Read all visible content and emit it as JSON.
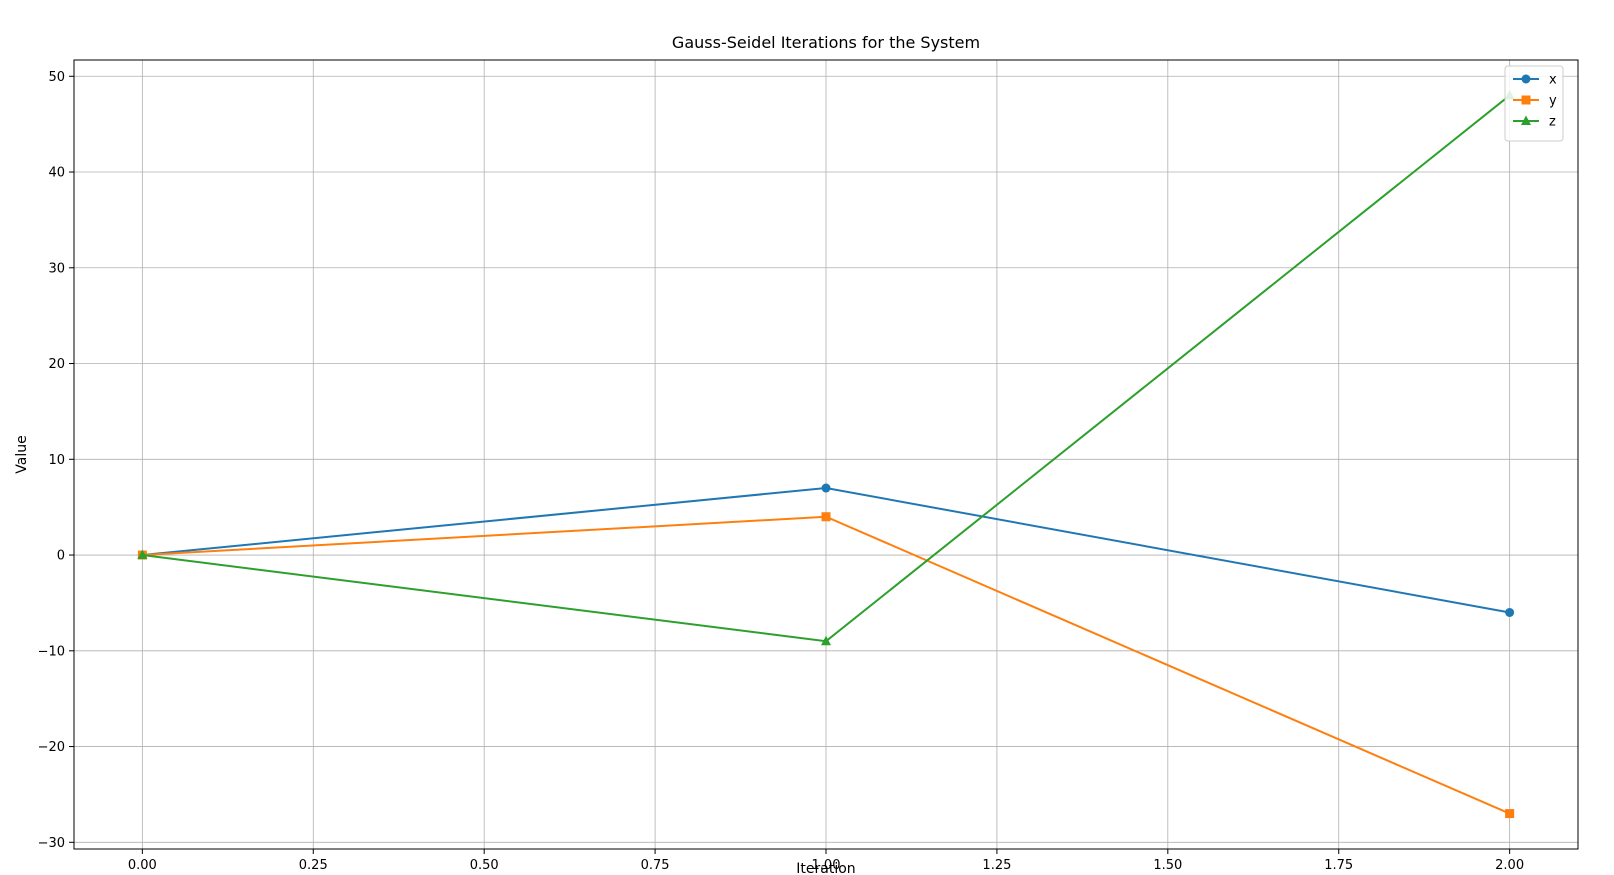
{
  "chart_data": {
    "type": "line",
    "title": "Gauss-Seidel Iterations for the System",
    "xlabel": "Iteration",
    "ylabel": "Value",
    "x": [
      0,
      1,
      2
    ],
    "xlim": [
      -0.1,
      2.1
    ],
    "ylim": [
      -30.7,
      51.7
    ],
    "xticks": [
      0.0,
      0.25,
      0.5,
      0.75,
      1.0,
      1.25,
      1.5,
      1.75,
      2.0
    ],
    "xtick_labels": [
      "0.00",
      "0.25",
      "0.50",
      "0.75",
      "1.00",
      "1.25",
      "1.50",
      "1.75",
      "2.00"
    ],
    "yticks": [
      -30,
      -20,
      -10,
      0,
      10,
      20,
      30,
      40,
      50
    ],
    "ytick_labels": [
      "−30",
      "−20",
      "−10",
      "0",
      "10",
      "20",
      "30",
      "40",
      "50"
    ],
    "grid": true,
    "legend_position": "top-right",
    "series": [
      {
        "name": "x",
        "values": [
          0,
          7,
          -6
        ],
        "color": "#1f77b4",
        "marker": "circle"
      },
      {
        "name": "y",
        "values": [
          0,
          4,
          -27
        ],
        "color": "#ff7f0e",
        "marker": "square"
      },
      {
        "name": "z",
        "values": [
          0,
          -9,
          48
        ],
        "color": "#2ca02c",
        "marker": "triangle"
      }
    ]
  }
}
